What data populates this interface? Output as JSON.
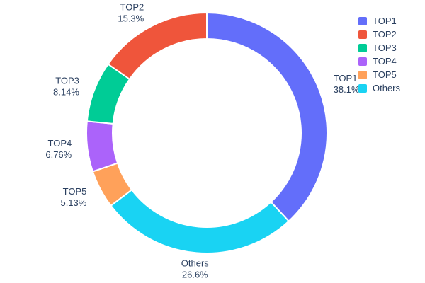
{
  "chart_data": {
    "type": "pie",
    "subtype": "donut",
    "hole": 0.78,
    "title": "",
    "labels": [
      "TOP1",
      "TOP2",
      "TOP3",
      "TOP4",
      "TOP5",
      "Others"
    ],
    "values": [
      38.1,
      15.3,
      8.14,
      6.76,
      5.13,
      26.6
    ],
    "percent_labels": [
      "38.1%",
      "15.3%",
      "8.14%",
      "6.76%",
      "5.13%",
      "26.6%"
    ],
    "colors": [
      "#636efa",
      "#ef553b",
      "#00cc96",
      "#ab63fa",
      "#ffa15a",
      "#19d3f3"
    ],
    "draw_order": [
      0,
      5,
      4,
      3,
      2,
      1
    ],
    "slice_border_color": "#ffffff",
    "text_color": "#2a3f5f",
    "background": "#ffffff",
    "legend_position": "right",
    "legend": [
      "TOP1",
      "TOP2",
      "TOP3",
      "TOP4",
      "TOP5",
      "Others"
    ]
  }
}
